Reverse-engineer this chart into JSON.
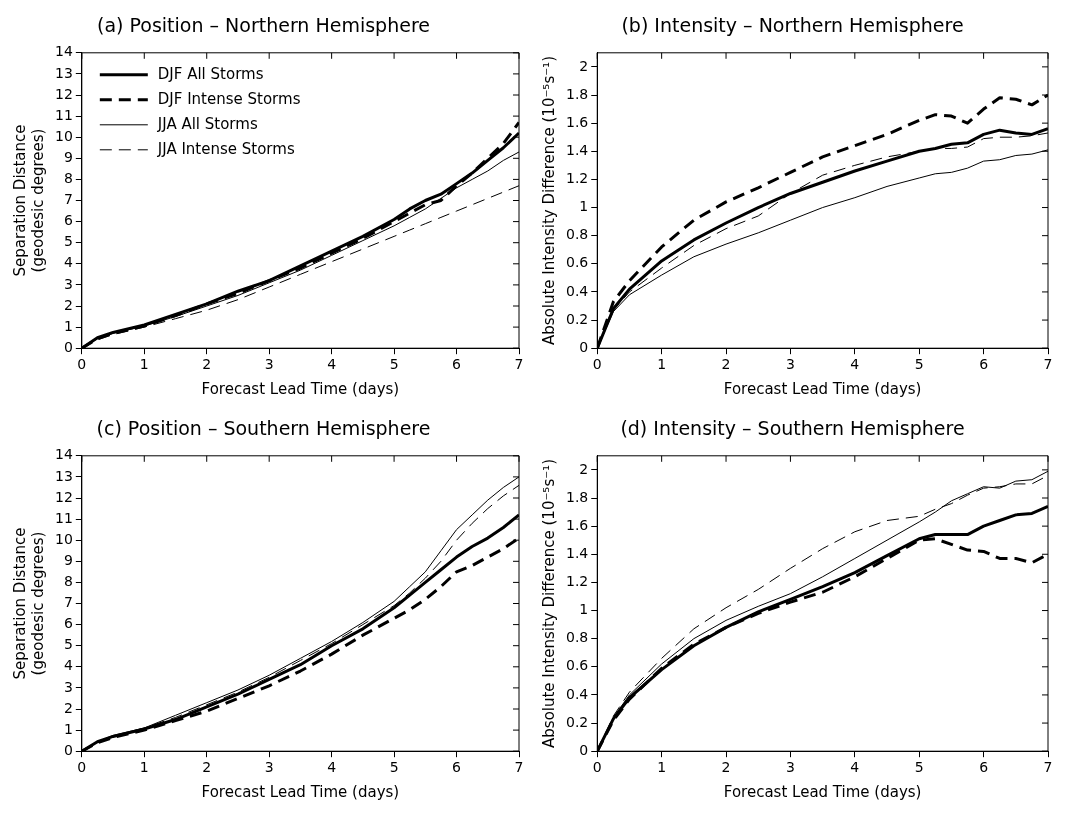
{
  "chart_data": [
    {
      "type": "line",
      "title": "(a) Position – Northern Hemisphere",
      "xlabel": "Forecast Lead Time (days)",
      "ylabel": "Separation Distance\n(geodesic degrees)",
      "legend": "top left",
      "x": [
        0,
        0.25,
        0.5,
        1,
        1.5,
        2,
        2.5,
        3,
        3.5,
        4,
        4.5,
        5,
        5.25,
        5.5,
        5.75,
        6,
        6.25,
        6.5,
        6.75,
        7
      ],
      "xlim": [
        0,
        7
      ],
      "xticks": [
        0,
        1,
        2,
        3,
        4,
        5,
        6,
        7
      ],
      "ylim": [
        0,
        14
      ],
      "yticks": [
        0,
        1,
        2,
        3,
        4,
        5,
        6,
        7,
        8,
        9,
        10,
        11,
        12,
        13,
        14
      ],
      "series": [
        {
          "name": "DJF All Storms",
          "color": "#000000",
          "line_style": "solid",
          "values": [
            0,
            0.5,
            0.75,
            1.1,
            1.6,
            2.1,
            2.7,
            3.2,
            3.9,
            4.6,
            5.3,
            6.1,
            6.6,
            7.0,
            7.3,
            7.8,
            8.3,
            8.9,
            9.5,
            10.2
          ]
        },
        {
          "name": "DJF Intense Storms",
          "color": "#000000",
          "line_style": "dashed",
          "values": [
            0,
            0.45,
            0.7,
            1.05,
            1.55,
            2.1,
            2.6,
            3.2,
            3.8,
            4.5,
            5.2,
            6.0,
            6.4,
            6.8,
            7.0,
            7.7,
            8.3,
            9.0,
            9.7,
            10.7
          ]
        },
        {
          "name": "JJA All Storms",
          "color": "#000000",
          "line_style": "solid",
          "values": [
            0,
            0.45,
            0.7,
            1.05,
            1.5,
            2.0,
            2.5,
            3.1,
            3.7,
            4.4,
            5.1,
            5.8,
            6.2,
            6.6,
            7.1,
            7.6,
            8.0,
            8.4,
            8.9,
            9.3
          ]
        },
        {
          "name": "JJA Intense Storms",
          "color": "#000000",
          "line_style": "dashed",
          "values": [
            0,
            0.4,
            0.65,
            1.0,
            1.4,
            1.8,
            2.3,
            2.9,
            3.5,
            4.1,
            4.7,
            5.3,
            5.6,
            5.9,
            6.2,
            6.5,
            6.8,
            7.1,
            7.4,
            7.7
          ]
        }
      ]
    },
    {
      "type": "line",
      "title": "(b) Intensity – Northern Hemisphere",
      "xlabel": "Forecast Lead Time (days)",
      "ylabel": "Absolute Intensity Difference (10⁻⁵s⁻¹)",
      "x": [
        0,
        0.25,
        0.5,
        1,
        1.5,
        2,
        2.5,
        3,
        3.5,
        4,
        4.5,
        5,
        5.25,
        5.5,
        5.75,
        6,
        6.25,
        6.5,
        6.75,
        7
      ],
      "xlim": [
        0,
        7
      ],
      "xticks": [
        0,
        1,
        2,
        3,
        4,
        5,
        6,
        7
      ],
      "ylim": [
        0,
        2.1
      ],
      "yticks": [
        0,
        0.2,
        0.4,
        0.6,
        0.8,
        1,
        1.2,
        1.4,
        1.6,
        1.8,
        2
      ],
      "series": [
        {
          "color": "#000000",
          "line_style": "solid",
          "values": [
            0,
            0.28,
            0.42,
            0.62,
            0.77,
            0.89,
            1.0,
            1.1,
            1.18,
            1.26,
            1.33,
            1.4,
            1.42,
            1.45,
            1.46,
            1.52,
            1.55,
            1.53,
            1.52,
            1.56
          ]
        },
        {
          "color": "#000000",
          "line_style": "dashed",
          "values": [
            0,
            0.33,
            0.48,
            0.72,
            0.91,
            1.04,
            1.14,
            1.25,
            1.36,
            1.44,
            1.52,
            1.62,
            1.66,
            1.65,
            1.6,
            1.7,
            1.78,
            1.77,
            1.73,
            1.8
          ]
        },
        {
          "color": "#000000",
          "line_style": "solid",
          "values": [
            0,
            0.26,
            0.38,
            0.52,
            0.65,
            0.74,
            0.82,
            0.91,
            1.0,
            1.07,
            1.15,
            1.21,
            1.24,
            1.25,
            1.28,
            1.33,
            1.34,
            1.37,
            1.38,
            1.41
          ]
        },
        {
          "color": "#000000",
          "line_style": "dashed",
          "values": [
            0,
            0.27,
            0.4,
            0.57,
            0.73,
            0.85,
            0.94,
            1.1,
            1.23,
            1.3,
            1.36,
            1.4,
            1.42,
            1.42,
            1.43,
            1.49,
            1.5,
            1.5,
            1.51,
            1.53
          ]
        }
      ]
    },
    {
      "type": "line",
      "title": "(c) Position – Southern Hemisphere",
      "xlabel": "Forecast Lead Time (days)",
      "ylabel": "Separation Distance\n(geodesic degrees)",
      "x": [
        0,
        0.25,
        0.5,
        1,
        1.5,
        2,
        2.5,
        3,
        3.5,
        4,
        4.5,
        5,
        5.25,
        5.5,
        5.75,
        6,
        6.25,
        6.5,
        6.75,
        7
      ],
      "xlim": [
        0,
        7
      ],
      "xticks": [
        0,
        1,
        2,
        3,
        4,
        5,
        6,
        7
      ],
      "ylim": [
        0,
        14
      ],
      "yticks": [
        0,
        1,
        2,
        3,
        4,
        5,
        6,
        7,
        8,
        9,
        10,
        11,
        12,
        13,
        14
      ],
      "series": [
        {
          "color": "#000000",
          "line_style": "solid",
          "values": [
            0,
            0.45,
            0.7,
            1.05,
            1.5,
            2.1,
            2.7,
            3.4,
            4.1,
            5.0,
            5.8,
            6.8,
            7.4,
            8.0,
            8.6,
            9.2,
            9.7,
            10.1,
            10.6,
            11.2
          ]
        },
        {
          "color": "#000000",
          "line_style": "dashed",
          "values": [
            0,
            0.4,
            0.65,
            1.0,
            1.45,
            1.9,
            2.5,
            3.1,
            3.8,
            4.6,
            5.5,
            6.3,
            6.7,
            7.2,
            7.8,
            8.5,
            8.8,
            9.2,
            9.6,
            10.1
          ]
        },
        {
          "color": "#000000",
          "line_style": "solid",
          "values": [
            0,
            0.45,
            0.75,
            1.1,
            1.7,
            2.3,
            2.9,
            3.6,
            4.4,
            5.2,
            6.1,
            7.1,
            7.8,
            8.5,
            9.5,
            10.5,
            11.2,
            11.9,
            12.5,
            13.0
          ]
        },
        {
          "color": "#000000",
          "line_style": "dashed",
          "values": [
            0,
            0.45,
            0.7,
            1.1,
            1.6,
            2.2,
            2.8,
            3.5,
            4.3,
            5.1,
            6.0,
            6.9,
            7.5,
            8.2,
            9.0,
            10.0,
            10.8,
            11.5,
            12.1,
            12.6
          ]
        }
      ]
    },
    {
      "type": "line",
      "title": "(d) Intensity – Southern Hemisphere",
      "xlabel": "Forecast Lead Time (days)",
      "ylabel": "Absolute Intensity Difference (10⁻⁵s⁻¹)",
      "x": [
        0,
        0.25,
        0.5,
        1,
        1.5,
        2,
        2.5,
        3,
        3.5,
        4,
        4.5,
        5,
        5.25,
        5.5,
        5.75,
        6,
        6.25,
        6.5,
        6.75,
        7
      ],
      "xlim": [
        0,
        7
      ],
      "xticks": [
        0,
        1,
        2,
        3,
        4,
        5,
        6,
        7
      ],
      "ylim": [
        0,
        2.1
      ],
      "yticks": [
        0,
        0.2,
        0.4,
        0.6,
        0.8,
        1,
        1.2,
        1.4,
        1.6,
        1.8,
        2
      ],
      "series": [
        {
          "color": "#000000",
          "line_style": "solid",
          "values": [
            0,
            0.23,
            0.38,
            0.58,
            0.75,
            0.88,
            0.99,
            1.08,
            1.17,
            1.27,
            1.39,
            1.51,
            1.54,
            1.54,
            1.54,
            1.6,
            1.64,
            1.68,
            1.69,
            1.74
          ]
        },
        {
          "color": "#000000",
          "line_style": "dashed",
          "values": [
            0,
            0.22,
            0.37,
            0.59,
            0.76,
            0.88,
            0.98,
            1.06,
            1.13,
            1.24,
            1.37,
            1.5,
            1.51,
            1.47,
            1.43,
            1.42,
            1.37,
            1.37,
            1.34,
            1.4
          ]
        },
        {
          "color": "#000000",
          "line_style": "solid",
          "values": [
            0,
            0.24,
            0.4,
            0.62,
            0.8,
            0.93,
            1.03,
            1.12,
            1.24,
            1.37,
            1.5,
            1.63,
            1.7,
            1.78,
            1.83,
            1.88,
            1.87,
            1.92,
            1.93,
            1.99
          ]
        },
        {
          "color": "#000000",
          "line_style": "dashed",
          "values": [
            0,
            0.25,
            0.42,
            0.66,
            0.87,
            1.02,
            1.15,
            1.3,
            1.44,
            1.56,
            1.64,
            1.67,
            1.72,
            1.76,
            1.82,
            1.87,
            1.88,
            1.9,
            1.9,
            1.96
          ]
        }
      ]
    }
  ]
}
